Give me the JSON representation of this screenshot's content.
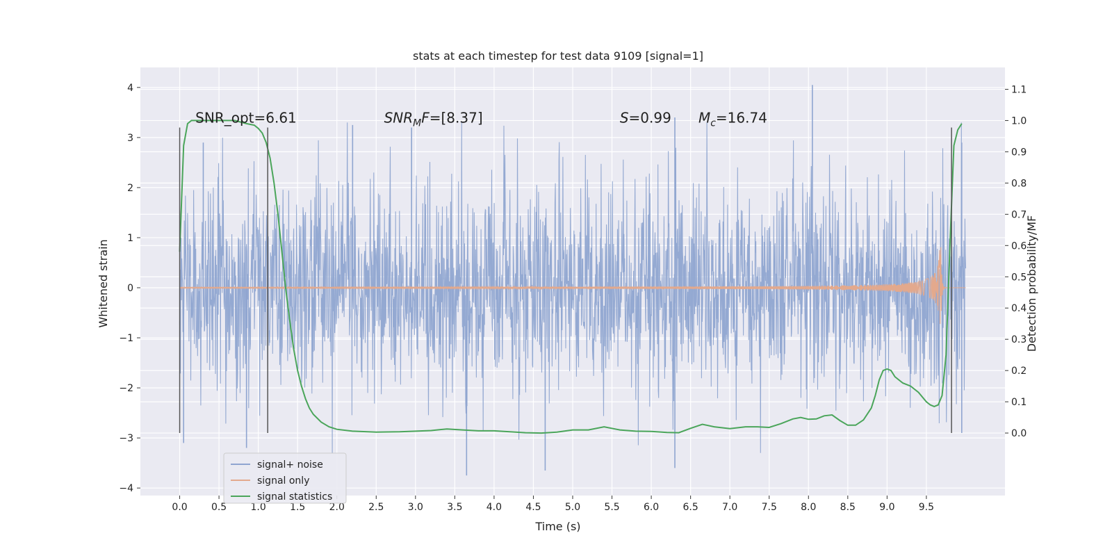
{
  "chart_data": {
    "type": "line",
    "title": "stats at each timestep for test data 9109 [signal=1]",
    "xlabel": "Time (s)",
    "ylabel_left": "Whitened strain",
    "ylabel_right": "Detection probability/MF",
    "xlim": [
      -0.5,
      10.5
    ],
    "ylim_left": [
      -4.15,
      4.4
    ],
    "ylim_right": [
      -0.2,
      1.17
    ],
    "xticks": [
      "0.0",
      "0.5",
      "1.0",
      "1.5",
      "2.0",
      "2.5",
      "3.0",
      "3.5",
      "4.0",
      "4.5",
      "5.0",
      "5.5",
      "6.0",
      "6.5",
      "7.0",
      "7.5",
      "8.0",
      "8.5",
      "9.0",
      "9.5"
    ],
    "yticks_left": [
      "4",
      "3",
      "2",
      "1",
      "0",
      "−1",
      "−2",
      "−3",
      "−4"
    ],
    "yticks_right": [
      "1.1",
      "1.0",
      "0.9",
      "0.8",
      "0.7",
      "0.6",
      "0.5",
      "0.4",
      "0.3",
      "0.2",
      "0.1",
      "0.0"
    ],
    "grid": true,
    "legend_position": "lower-left",
    "annotations": [
      {
        "label": "SNR_opt=6.61",
        "x": 0.2,
        "y": 3.3
      },
      {
        "label": "SNR_MF=[8.37]",
        "x": 2.6,
        "y": 3.3
      },
      {
        "label": "S=0.99",
        "x": 5.6,
        "y": 3.3
      },
      {
        "label": "M_c=16.74",
        "x": 6.6,
        "y": 3.3
      }
    ],
    "vertical_markers": [
      {
        "x": 0.0,
        "ymin": -2.9,
        "ymax": 3.2
      },
      {
        "x": 1.12,
        "ymin": -2.9,
        "ymax": 3.2
      },
      {
        "x": 9.82,
        "ymin": -2.9,
        "ymax": 3.2
      }
    ],
    "series": [
      {
        "name": "signal+ noise",
        "color": "#8fa5d0",
        "axis": "left",
        "x_range": [
          0.0,
          10.0
        ],
        "noise_sigma": 1.0,
        "peak_values": [
          {
            "x": 0.05,
            "y": -3.1
          },
          {
            "x": 0.3,
            "y": 2.9
          },
          {
            "x": 0.85,
            "y": -3.2
          },
          {
            "x": 2.2,
            "y": 3.25
          },
          {
            "x": 2.95,
            "y": 3.2
          },
          {
            "x": 3.65,
            "y": -3.75
          },
          {
            "x": 4.65,
            "y": -3.65
          },
          {
            "x": 6.3,
            "y": -3.6
          },
          {
            "x": 6.3,
            "y": 3.4
          },
          {
            "x": 8.05,
            "y": 4.05
          },
          {
            "x": 9.95,
            "y": 2.9
          },
          {
            "x": 9.95,
            "y": -2.9
          }
        ]
      },
      {
        "name": "signal only",
        "color": "#e3a98d",
        "axis": "left",
        "description_values": {
          "t_merger": 9.68,
          "peak_amplitude": 1.2
        }
      },
      {
        "name": "signal statistics",
        "color": "#4aa55a",
        "axis": "right",
        "x": [
          0.0,
          0.05,
          0.1,
          0.15,
          0.2,
          0.3,
          0.5,
          0.7,
          0.85,
          0.95,
          1.0,
          1.05,
          1.1,
          1.15,
          1.2,
          1.25,
          1.3,
          1.35,
          1.4,
          1.45,
          1.5,
          1.55,
          1.6,
          1.65,
          1.7,
          1.8,
          1.9,
          2.0,
          2.2,
          2.5,
          2.8,
          3.0,
          3.2,
          3.4,
          3.6,
          3.8,
          4.0,
          4.2,
          4.4,
          4.6,
          4.8,
          5.0,
          5.2,
          5.4,
          5.6,
          5.8,
          6.0,
          6.2,
          6.35,
          6.5,
          6.65,
          6.8,
          7.0,
          7.2,
          7.35,
          7.5,
          7.65,
          7.8,
          7.9,
          8.0,
          8.1,
          8.2,
          8.3,
          8.4,
          8.5,
          8.6,
          8.7,
          8.8,
          8.85,
          8.9,
          8.95,
          9.0,
          9.05,
          9.1,
          9.2,
          9.3,
          9.4,
          9.5,
          9.55,
          9.6,
          9.65,
          9.7,
          9.75,
          9.8,
          9.85,
          9.9,
          9.95
        ],
        "y": [
          0.58,
          0.92,
          0.99,
          1.0,
          1.0,
          1.0,
          1.0,
          1.0,
          0.99,
          0.985,
          0.975,
          0.96,
          0.93,
          0.88,
          0.8,
          0.7,
          0.58,
          0.46,
          0.36,
          0.27,
          0.2,
          0.15,
          0.11,
          0.08,
          0.06,
          0.035,
          0.02,
          0.012,
          0.006,
          0.003,
          0.004,
          0.006,
          0.008,
          0.013,
          0.01,
          0.007,
          0.007,
          0.004,
          0.001,
          0.0,
          0.003,
          0.01,
          0.01,
          0.02,
          0.01,
          0.006,
          0.005,
          0.002,
          0.001,
          0.015,
          0.028,
          0.02,
          0.014,
          0.02,
          0.02,
          0.018,
          0.03,
          0.045,
          0.05,
          0.044,
          0.045,
          0.055,
          0.058,
          0.04,
          0.025,
          0.025,
          0.042,
          0.08,
          0.12,
          0.17,
          0.2,
          0.205,
          0.2,
          0.18,
          0.16,
          0.15,
          0.13,
          0.1,
          0.09,
          0.085,
          0.09,
          0.12,
          0.25,
          0.6,
          0.92,
          0.97,
          0.99
        ]
      }
    ]
  }
}
